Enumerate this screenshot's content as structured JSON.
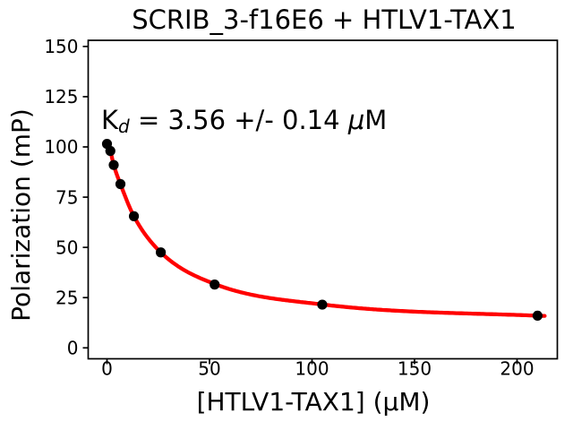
{
  "chart_data": {
    "type": "scatter",
    "title": "SCRIB_3-f16E6 + HTLV1-TAX1",
    "xlabel": "[HTLV1-TAX1] (μM)",
    "ylabel": "Polarization (mP)",
    "xlim": [
      -9.2,
      219.7
    ],
    "ylim": [
      -5.4,
      153.1
    ],
    "xticks": [
      0,
      50,
      100,
      150,
      200
    ],
    "yticks": [
      0,
      25,
      50,
      75,
      100,
      125,
      150
    ],
    "grid": false,
    "legend": "none",
    "annotation": {
      "text": "K_d = 3.56 +/- 0.14 μM",
      "parts": {
        "base": "K",
        "sub": "d",
        "mid": " = 3.56 +/- 0.14 ",
        "mu": "μ",
        "unit": "M"
      }
    },
    "colors": {
      "fit_curve": "#ff0000",
      "markers": "#000000",
      "axes": "#000000",
      "background": "#ffffff"
    },
    "series": [
      {
        "name": "measured-points",
        "type": "scatter",
        "color": "#000000",
        "x": [
          0,
          1.64,
          3.28,
          6.56,
          13.13,
          26.25,
          52.5,
          105,
          210
        ],
        "y": [
          101.5,
          98,
          91,
          81.5,
          65.5,
          47.5,
          31.5,
          21.5,
          16
        ]
      },
      {
        "name": "fit-curve",
        "type": "line",
        "color": "#ff0000",
        "x": [
          0,
          1.64,
          3.28,
          6.56,
          13.13,
          26.25,
          52.5,
          105,
          210,
          213.5
        ],
        "y": [
          100.8,
          98,
          91,
          81.5,
          65.5,
          47.5,
          31.8,
          21.6,
          16,
          15.9
        ]
      }
    ]
  }
}
